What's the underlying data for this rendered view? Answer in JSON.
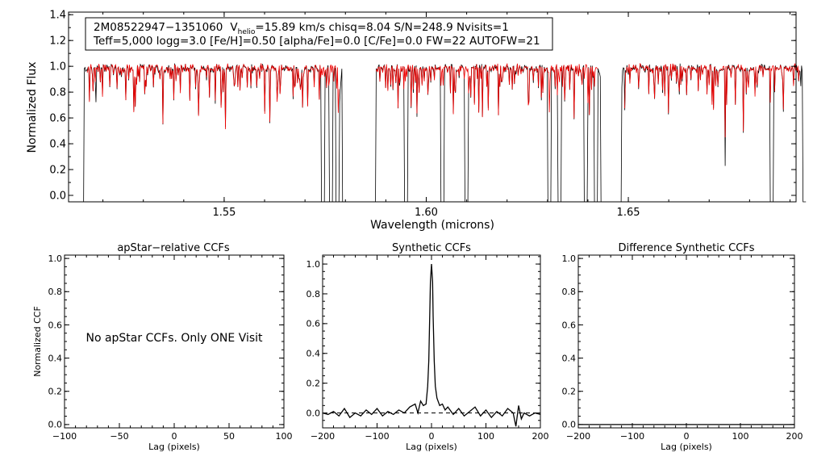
{
  "figure": {
    "info_line1": {
      "star": "2M08522947−1351060",
      "vlabel": "V",
      "vsub": "helio",
      "rest": "=15.89 km/s  chisq=8.04  S/N=248.9  Nvisits=1"
    },
    "info_line2": "Teff=5,000 logg=3.0 [Fe/H]=0.50 [alpha/Fe]=0.0 [C/Fe]=0.0 FW=22 AUTOFW=21"
  },
  "chart_data": [
    {
      "id": "spectrum",
      "type": "line",
      "xlabel": "Wavelength (microns)",
      "ylabel": "Normalized Flux",
      "xlim": [
        1.5115,
        1.6915
      ],
      "ylim": [
        -0.05,
        1.42
      ],
      "xticks": [
        1.55,
        1.6,
        1.65
      ],
      "xtick_labels": [
        "1.55",
        "1.60",
        "1.65"
      ],
      "yticks": [
        0.0,
        0.2,
        0.4,
        0.6,
        0.8,
        1.0,
        1.2,
        1.4
      ],
      "ytick_labels": [
        "0.0",
        "0.2",
        "0.4",
        "0.6",
        "0.8",
        "1.0",
        "1.2",
        "1.4"
      ],
      "chips": [
        [
          1.5145,
          1.58
        ],
        [
          1.586,
          1.644
        ],
        [
          1.6475,
          1.694
        ]
      ],
      "gaps": [
        [
          1.58,
          1.586
        ],
        [
          1.644,
          1.6475
        ]
      ],
      "deep_lines": [
        1.5745,
        1.5765,
        1.578,
        1.587,
        1.595,
        1.604,
        1.61,
        1.6305,
        1.633,
        1.6395,
        1.642,
        1.6855
      ],
      "series": [
        {
          "color": "#000000"
        },
        {
          "color": "#ee0000"
        }
      ]
    },
    {
      "id": "apstar_ccf",
      "type": "line",
      "title": "apStar−relative CCFs",
      "xlabel": "Lag (pixels)",
      "ylabel": "Normalized CCF",
      "xlim": [
        -100,
        100
      ],
      "ylim": [
        -0.02,
        1.02
      ],
      "xticks": [
        -100,
        -50,
        0,
        50,
        100
      ],
      "xtick_labels": [
        "−100",
        "−50",
        "0",
        "50",
        "100"
      ],
      "yticks": [
        0.0,
        0.2,
        0.4,
        0.6,
        0.8,
        1.0
      ],
      "ytick_labels": [
        "0.0",
        "0.2",
        "0.4",
        "0.6",
        "0.8",
        "1.0"
      ],
      "annotation": "No apStar CCFs.  Only ONE Visit"
    },
    {
      "id": "synthetic_ccf",
      "type": "line",
      "title": "Synthetic CCFs",
      "xlabel": "Lag (pixels)",
      "xlim": [
        -200,
        200
      ],
      "ylim": [
        -0.1,
        1.06
      ],
      "xticks": [
        -200,
        -100,
        0,
        100,
        200
      ],
      "xtick_labels": [
        "−200",
        "−100",
        "0",
        "100",
        "200"
      ],
      "yticks": [
        0.0,
        0.2,
        0.4,
        0.6,
        0.8,
        1.0
      ],
      "ytick_labels": [
        "0.0",
        "0.2",
        "0.4",
        "0.6",
        "0.8",
        "1.0"
      ],
      "zero_line": "dashed",
      "x": [
        -200,
        -190,
        -180,
        -170,
        -160,
        -150,
        -140,
        -130,
        -120,
        -110,
        -100,
        -90,
        -80,
        -70,
        -60,
        -50,
        -40,
        -30,
        -25,
        -20,
        -15,
        -10,
        -7,
        -5,
        -3,
        -2,
        0,
        2,
        3,
        5,
        7,
        10,
        15,
        20,
        25,
        30,
        40,
        50,
        60,
        70,
        80,
        90,
        100,
        110,
        120,
        130,
        140,
        150,
        155,
        160,
        165,
        170,
        180,
        190,
        200
      ],
      "y": [
        0.0,
        -0.01,
        0.01,
        -0.02,
        0.03,
        -0.03,
        0.0,
        -0.02,
        0.02,
        -0.01,
        0.03,
        -0.02,
        0.01,
        -0.01,
        0.02,
        0.0,
        0.04,
        0.06,
        0.0,
        0.08,
        0.05,
        0.06,
        0.18,
        0.35,
        0.7,
        0.88,
        1.0,
        0.88,
        0.65,
        0.35,
        0.18,
        0.1,
        0.05,
        0.06,
        0.02,
        0.04,
        -0.01,
        0.03,
        -0.02,
        0.01,
        0.04,
        -0.02,
        0.02,
        -0.03,
        0.01,
        -0.02,
        0.03,
        0.0,
        -0.09,
        0.05,
        -0.04,
        0.0,
        -0.02,
        0.0,
        -0.01
      ]
    },
    {
      "id": "difference_ccf",
      "type": "line",
      "title": "Difference Synthetic CCFs",
      "xlabel": "Lag (pixels)",
      "xlim": [
        -200,
        200
      ],
      "ylim": [
        -0.02,
        1.02
      ],
      "xticks": [
        -200,
        -100,
        0,
        100,
        200
      ],
      "xtick_labels": [
        "−200",
        "−100",
        "0",
        "100",
        "200"
      ],
      "yticks": [
        0.0,
        0.2,
        0.4,
        0.6,
        0.8,
        1.0
      ],
      "ytick_labels": [
        "0.0",
        "0.2",
        "0.4",
        "0.6",
        "0.8",
        "1.0"
      ],
      "x": [
        -200,
        200
      ],
      "y": [
        0.0,
        0.0
      ]
    }
  ]
}
